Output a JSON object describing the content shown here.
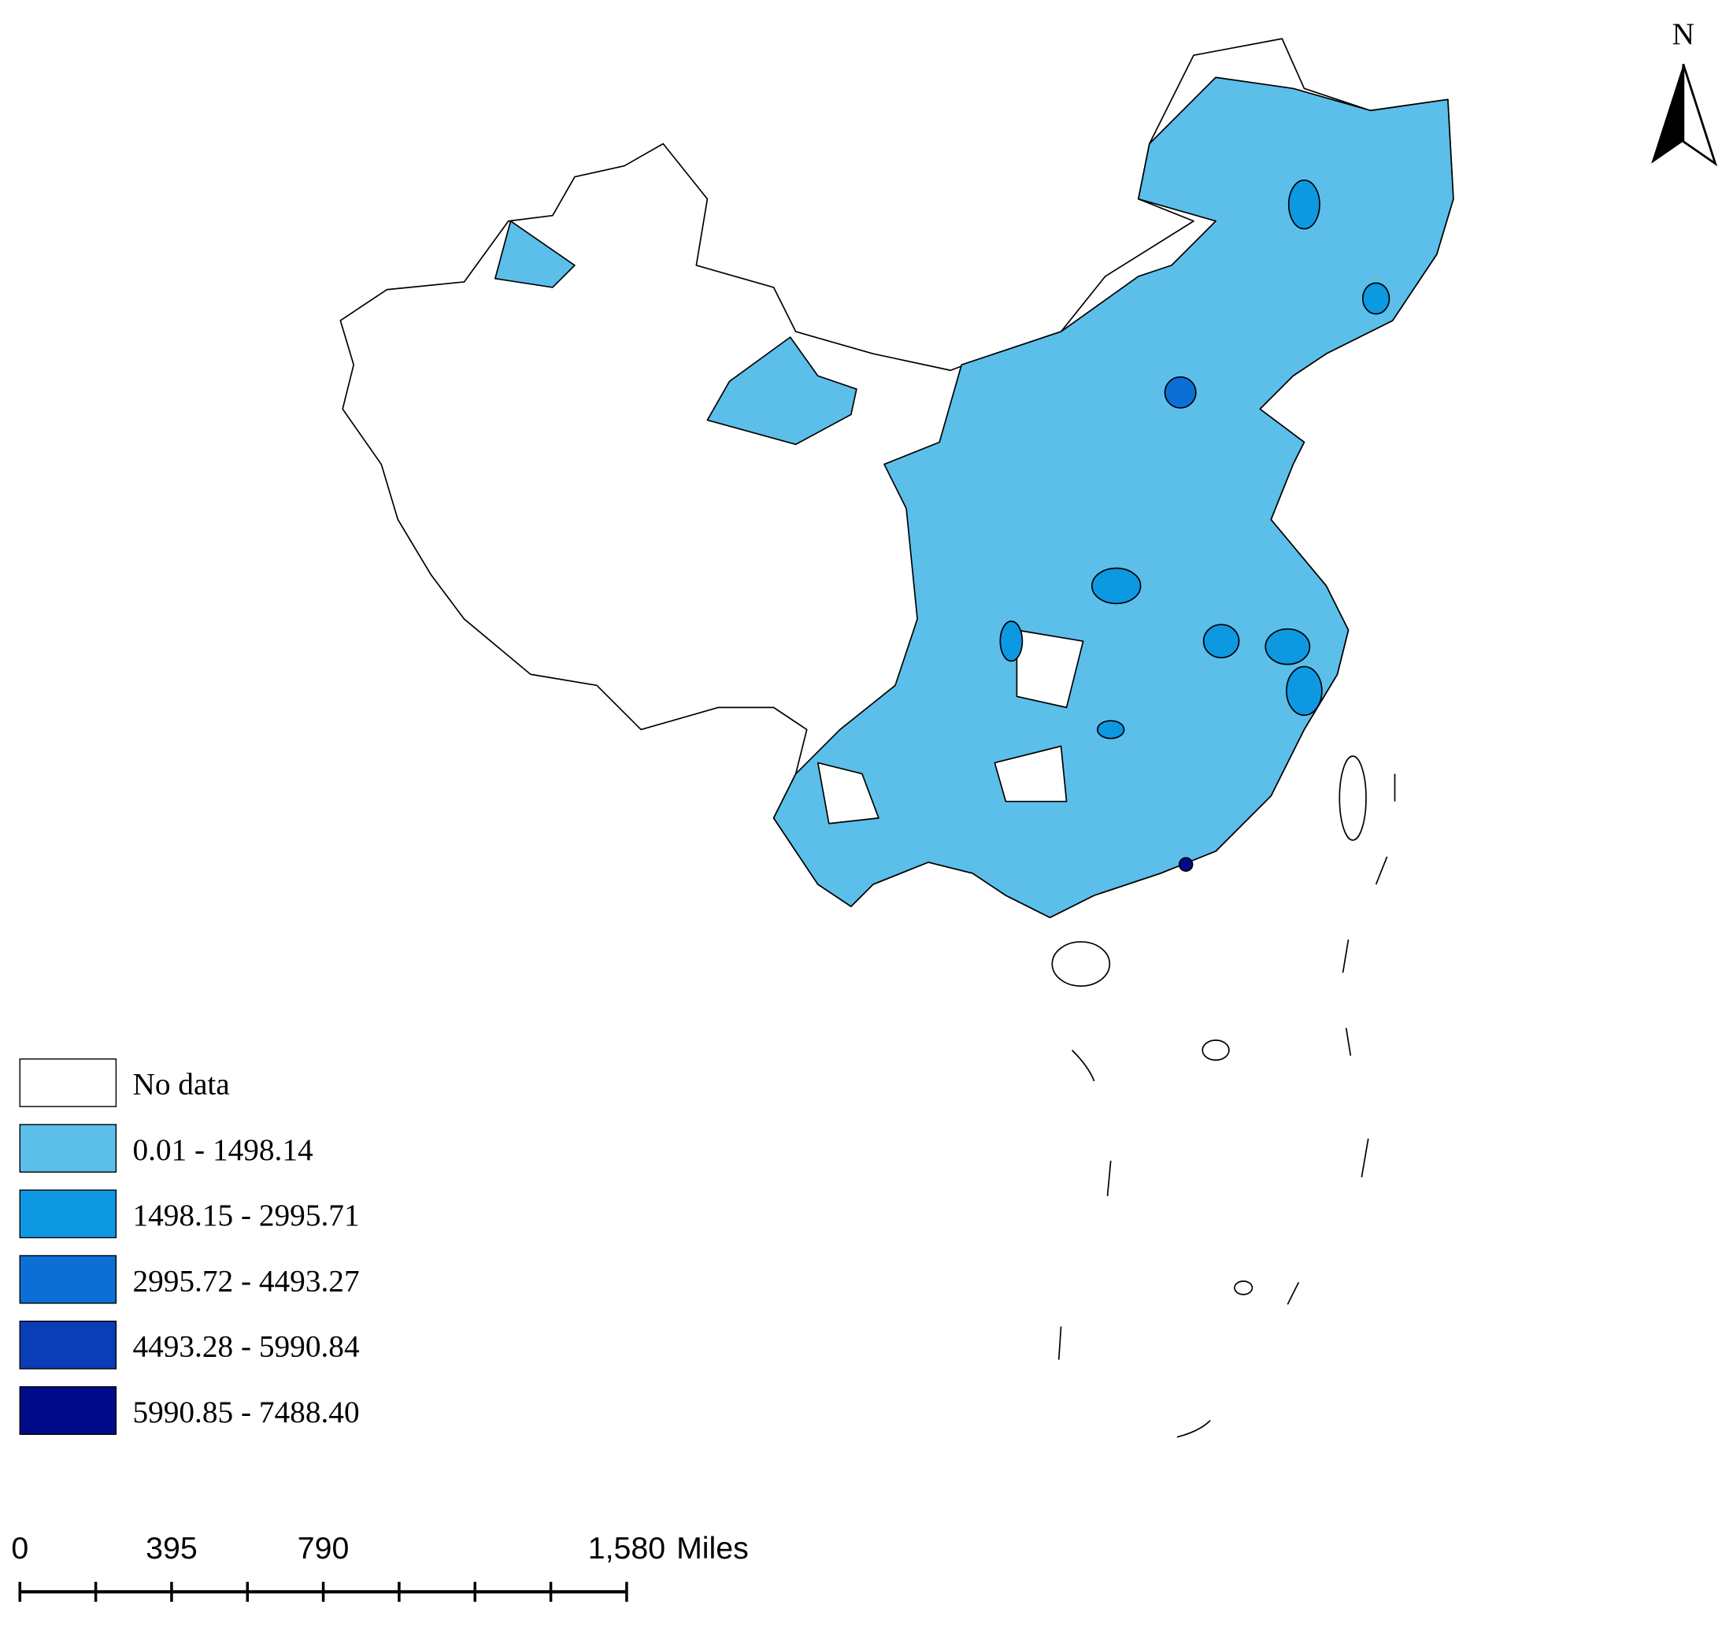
{
  "north_arrow": {
    "label": "N"
  },
  "legend": {
    "items": [
      {
        "label": "No data",
        "color": "#ffffff"
      },
      {
        "label": "0.01 - 1498.14",
        "color": "#5bbfea"
      },
      {
        "label": "1498.15 - 2995.71",
        "color": "#0d98e2"
      },
      {
        "label": "2995.72 - 4493.27",
        "color": "#0b6fd6"
      },
      {
        "label": "4493.28 - 5990.84",
        "color": "#0a3db6"
      },
      {
        "label": "5990.85 - 7488.40",
        "color": "#000b8a"
      }
    ]
  },
  "scale_bar": {
    "labels": [
      "0",
      "395",
      "790",
      "1,580"
    ],
    "unit": "Miles"
  }
}
